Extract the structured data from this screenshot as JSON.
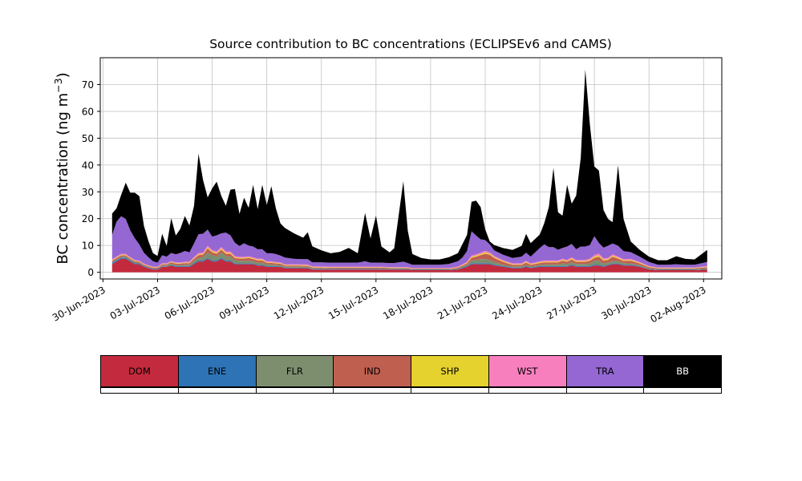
{
  "title": "Source contribution to BC concentrations (ECLIPSEv6 and CAMS)",
  "ylabel": {
    "main": "BC concentration (ng m",
    "sup": "−3",
    "end": ")"
  },
  "chart_data": {
    "type": "area",
    "stacked": true,
    "title": "Source contribution to BC concentrations (ECLIPSEv6 and CAMS)",
    "ylabel": "BC concentration (ng m−3)",
    "x_unit": "days since 30-Jun-2023 00:00",
    "xlim": [
      -0.15,
      34
    ],
    "ylim": [
      -2.5,
      80
    ],
    "grid": true,
    "legend_position": "bottom-table",
    "yticks": [
      0,
      10,
      20,
      30,
      40,
      50,
      60,
      70
    ],
    "xticks": {
      "positions": [
        0,
        3,
        6,
        9,
        12,
        15,
        18,
        21,
        24,
        27,
        30,
        33
      ],
      "labels": [
        "30-Jun-2023",
        "03-Jul-2023",
        "06-Jul-2023",
        "09-Jul-2023",
        "12-Jul-2023",
        "15-Jul-2023",
        "18-Jul-2023",
        "21-Jul-2023",
        "24-Jul-2023",
        "27-Jul-2023",
        "30-Jul-2023",
        "02-Aug-2023"
      ]
    },
    "x": [
      0.5,
      0.75,
      1,
      1.25,
      1.5,
      1.75,
      2,
      2.25,
      2.5,
      2.75,
      3,
      3.25,
      3.5,
      3.75,
      4,
      4.25,
      4.5,
      4.75,
      5,
      5.25,
      5.5,
      5.75,
      6,
      6.25,
      6.5,
      6.75,
      7,
      7.25,
      7.5,
      7.75,
      8,
      8.25,
      8.5,
      8.75,
      9,
      9.25,
      9.5,
      9.75,
      10,
      10.5,
      11,
      11.25,
      11.5,
      12,
      12.5,
      13,
      13.5,
      14,
      14.4,
      14.7,
      15,
      15.3,
      15.75,
      16,
      16.5,
      16.75,
      17,
      17.5,
      18,
      18.5,
      19,
      19.5,
      19.75,
      20,
      20.25,
      20.5,
      20.75,
      21,
      21.25,
      21.5,
      22,
      22.5,
      23,
      23.25,
      23.5,
      24,
      24.25,
      24.5,
      24.75,
      25,
      25.25,
      25.5,
      25.75,
      26,
      26.25,
      26.5,
      26.75,
      27,
      27.25,
      27.5,
      27.75,
      28,
      28.3,
      28.6,
      29,
      29.5,
      30,
      30.5,
      31,
      31.5,
      32,
      32.5,
      33.2
    ],
    "series": [
      {
        "name": "DOM",
        "color": "#c32a3d",
        "values": [
          3,
          4,
          5,
          5,
          4,
          3,
          3,
          2,
          1.5,
          1,
          1,
          2,
          2,
          2.5,
          2,
          2,
          2,
          2,
          3,
          4,
          4,
          5,
          4,
          4,
          5,
          4,
          4,
          3,
          3,
          3,
          3,
          3,
          2.5,
          2.5,
          2,
          2,
          2,
          2,
          1.5,
          1.5,
          1.5,
          1.5,
          1,
          1,
          1,
          1,
          1,
          1,
          1,
          1,
          1,
          1,
          1,
          1,
          1,
          1,
          0.8,
          0.8,
          0.8,
          0.8,
          0.8,
          1,
          1.5,
          2,
          3,
          3,
          3,
          3,
          3,
          2.5,
          2,
          1.5,
          1.5,
          2,
          1.5,
          2,
          2,
          2,
          2,
          2,
          2,
          2,
          2.5,
          2,
          2,
          2,
          2,
          2.5,
          2.5,
          2,
          2.5,
          3,
          3,
          2.5,
          2.5,
          2,
          1,
          0.8,
          0.8,
          0.8,
          0.8,
          0.8,
          1
        ]
      },
      {
        "name": "ENE",
        "color": "#2e73b5",
        "values": [
          0.5,
          0.5,
          0.5,
          0.5,
          0.4,
          0.4,
          0.3,
          0.3,
          0.2,
          0.2,
          0.2,
          0.2,
          0.2,
          0.3,
          0.3,
          0.3,
          0.3,
          0.3,
          0.4,
          0.4,
          0.4,
          0.4,
          0.4,
          0.4,
          0.4,
          0.4,
          0.4,
          0.3,
          0.3,
          0.3,
          0.3,
          0.3,
          0.3,
          0.3,
          0.3,
          0.3,
          0.3,
          0.2,
          0.2,
          0.2,
          0.2,
          0.2,
          0.2,
          0.2,
          0.2,
          0.2,
          0.2,
          0.2,
          0.2,
          0.2,
          0.2,
          0.2,
          0.2,
          0.2,
          0.2,
          0.2,
          0.15,
          0.15,
          0.15,
          0.15,
          0.15,
          0.2,
          0.3,
          0.3,
          0.4,
          0.4,
          0.4,
          0.4,
          0.35,
          0.3,
          0.3,
          0.25,
          0.25,
          0.3,
          0.25,
          0.3,
          0.3,
          0.3,
          0.3,
          0.3,
          0.3,
          0.3,
          0.3,
          0.3,
          0.3,
          0.3,
          0.3,
          0.35,
          0.35,
          0.3,
          0.3,
          0.3,
          0.3,
          0.3,
          0.3,
          0.25,
          0.2,
          0.15,
          0.15,
          0.15,
          0.15,
          0.15,
          0.2
        ]
      },
      {
        "name": "FLR",
        "color": "#7d8e6f",
        "values": [
          0.3,
          0.3,
          0.3,
          0.3,
          0.3,
          0.3,
          0.2,
          0.2,
          0.2,
          0.2,
          0.2,
          0.3,
          0.3,
          0.4,
          0.4,
          0.4,
          0.5,
          0.5,
          0.8,
          1,
          1.2,
          2,
          2,
          1.5,
          2,
          1.5,
          1.5,
          1.2,
          1,
          1,
          1,
          0.8,
          0.8,
          0.8,
          0.6,
          0.6,
          0.5,
          0.5,
          0.4,
          0.4,
          0.3,
          0.3,
          0.3,
          0.3,
          0.2,
          0.2,
          0.2,
          0.2,
          0.2,
          0.2,
          0.2,
          0.2,
          0.2,
          0.2,
          0.2,
          0.2,
          0.15,
          0.15,
          0.15,
          0.15,
          0.15,
          0.2,
          0.3,
          0.5,
          1,
          1.2,
          1.5,
          1.5,
          1.2,
          1,
          0.5,
          0.4,
          0.4,
          0.5,
          0.4,
          0.5,
          0.6,
          0.6,
          0.6,
          0.6,
          1,
          0.8,
          1,
          0.8,
          0.8,
          0.8,
          1,
          1.5,
          1.5,
          1,
          0.8,
          1,
          0.8,
          0.6,
          0.5,
          0.4,
          0.3,
          0.2,
          0.2,
          0.2,
          0.2,
          0.2,
          0.3
        ]
      },
      {
        "name": "IND",
        "color": "#bf5f50",
        "values": [
          0.5,
          0.5,
          0.5,
          0.5,
          0.4,
          0.4,
          0.4,
          0.3,
          0.3,
          0.3,
          0.3,
          0.4,
          0.4,
          0.5,
          0.5,
          0.5,
          0.6,
          0.6,
          0.8,
          1,
          1,
          1.5,
          1,
          1,
          1,
          1,
          1,
          0.8,
          0.8,
          0.8,
          1,
          0.8,
          0.8,
          0.8,
          0.6,
          0.6,
          0.5,
          0.5,
          0.4,
          0.4,
          0.4,
          0.4,
          0.3,
          0.3,
          0.3,
          0.3,
          0.3,
          0.3,
          0.3,
          0.3,
          0.3,
          0.3,
          0.2,
          0.2,
          0.2,
          0.2,
          0.2,
          0.2,
          0.2,
          0.2,
          0.2,
          0.3,
          0.4,
          0.5,
          1,
          1.2,
          1.5,
          2,
          2,
          1.5,
          1,
          0.6,
          0.6,
          0.8,
          0.6,
          0.6,
          0.8,
          0.8,
          0.8,
          0.8,
          1,
          0.8,
          1,
          0.8,
          0.8,
          0.8,
          1,
          1,
          1.5,
          1,
          1,
          1.5,
          1,
          0.8,
          1,
          0.6,
          0.4,
          0.3,
          0.3,
          0.3,
          0.3,
          0.3,
          0.4
        ]
      },
      {
        "name": "SHP",
        "color": "#e5d22e",
        "values": [
          0.2,
          0.2,
          0.2,
          0.2,
          0.2,
          0.2,
          0.15,
          0.15,
          0.15,
          0.15,
          0.15,
          0.15,
          0.15,
          0.2,
          0.2,
          0.2,
          0.2,
          0.2,
          0.3,
          0.3,
          0.3,
          0.4,
          0.4,
          0.4,
          0.5,
          0.4,
          0.4,
          0.3,
          0.3,
          0.3,
          0.3,
          0.3,
          0.3,
          0.3,
          0.25,
          0.25,
          0.2,
          0.2,
          0.2,
          0.2,
          0.2,
          0.2,
          0.15,
          0.15,
          0.15,
          0.15,
          0.15,
          0.15,
          0.15,
          0.15,
          0.15,
          0.15,
          0.15,
          0.15,
          0.15,
          0.15,
          0.1,
          0.1,
          0.1,
          0.1,
          0.1,
          0.15,
          0.2,
          0.25,
          0.4,
          0.4,
          0.4,
          0.5,
          0.4,
          0.4,
          0.3,
          0.25,
          0.25,
          0.3,
          0.25,
          0.3,
          0.3,
          0.3,
          0.3,
          0.3,
          0.35,
          0.3,
          0.35,
          0.3,
          0.3,
          0.3,
          0.35,
          0.5,
          0.5,
          0.4,
          0.35,
          0.4,
          0.35,
          0.3,
          0.3,
          0.25,
          0.2,
          0.15,
          0.15,
          0.15,
          0.15,
          0.15,
          0.2
        ]
      },
      {
        "name": "WST",
        "color": "#f77fbe",
        "values": [
          0.4,
          0.4,
          0.4,
          0.4,
          0.35,
          0.35,
          0.3,
          0.3,
          0.25,
          0.25,
          0.25,
          0.3,
          0.3,
          0.3,
          0.3,
          0.3,
          0.35,
          0.35,
          0.4,
          0.5,
          0.5,
          0.6,
          0.5,
          0.5,
          0.6,
          0.5,
          0.5,
          0.45,
          0.4,
          0.4,
          0.4,
          0.4,
          0.4,
          0.4,
          0.35,
          0.35,
          0.3,
          0.3,
          0.3,
          0.3,
          0.3,
          0.3,
          0.25,
          0.25,
          0.25,
          0.25,
          0.25,
          0.25,
          0.25,
          0.25,
          0.25,
          0.25,
          0.2,
          0.2,
          0.2,
          0.2,
          0.2,
          0.2,
          0.2,
          0.2,
          0.2,
          0.25,
          0.3,
          0.35,
          0.5,
          0.5,
          0.5,
          0.6,
          0.5,
          0.45,
          0.4,
          0.35,
          0.35,
          0.4,
          0.35,
          0.4,
          0.4,
          0.4,
          0.4,
          0.4,
          0.45,
          0.4,
          0.45,
          0.4,
          0.4,
          0.4,
          0.45,
          0.6,
          0.6,
          0.5,
          0.45,
          0.5,
          0.45,
          0.4,
          0.4,
          0.3,
          0.25,
          0.2,
          0.2,
          0.2,
          0.2,
          0.2,
          0.25
        ]
      },
      {
        "name": "TRA",
        "color": "#9467d3",
        "values": [
          9,
          13,
          14,
          13,
          10,
          8,
          6,
          4,
          3,
          2,
          1.5,
          3,
          2.5,
          3,
          3,
          3.5,
          4,
          3.5,
          5,
          7,
          7,
          6,
          5,
          6,
          5,
          7,
          6,
          5,
          4,
          5,
          4,
          4,
          3.5,
          3.5,
          3,
          3,
          3,
          2.5,
          2.5,
          2,
          2,
          2,
          1.5,
          1.5,
          1.5,
          1.5,
          1.5,
          1.5,
          2,
          1.5,
          1.5,
          1.5,
          1.5,
          1.5,
          2,
          1.5,
          1.2,
          1.2,
          1.2,
          1.2,
          1.5,
          2,
          2.5,
          4,
          9,
          7,
          5,
          4,
          3,
          2,
          2,
          2,
          2.5,
          3,
          2.5,
          5,
          6,
          5,
          5,
          4,
          4,
          5,
          5,
          4,
          5,
          5,
          5,
          7,
          4,
          4,
          4.5,
          4,
          4,
          3,
          2.5,
          2,
          1.5,
          1,
          1,
          1.2,
          1,
          1,
          1.5
        ]
      },
      {
        "name": "BB",
        "color": "#000000",
        "label_color": "#ffffff",
        "values": [
          8,
          5,
          8,
          13.5,
          14,
          17,
          18,
          10,
          6,
          3,
          2.5,
          8,
          4,
          13,
          7,
          9,
          13,
          10,
          14,
          30,
          20,
          12,
          18,
          20,
          14,
          10,
          17,
          20,
          12,
          17,
          14,
          23,
          15,
          24,
          18,
          25,
          17,
          12,
          11,
          9.5,
          8,
          10,
          6,
          4.5,
          3.5,
          4,
          5.5,
          3.5,
          18,
          9,
          17.5,
          6,
          4,
          5.5,
          30,
          12,
          4,
          2.5,
          2,
          2,
          2.5,
          3,
          5,
          6,
          11,
          13,
          12,
          4,
          1,
          2,
          2.5,
          3,
          4,
          7,
          5,
          5,
          8,
          15,
          29.5,
          14,
          12,
          23,
          15,
          20,
          33,
          66,
          45,
          26,
          27,
          14,
          10,
          8,
          30,
          12,
          4,
          2.5,
          2,
          1.7,
          1.7,
          3,
          2.2,
          2,
          4.5
        ]
      }
    ]
  }
}
